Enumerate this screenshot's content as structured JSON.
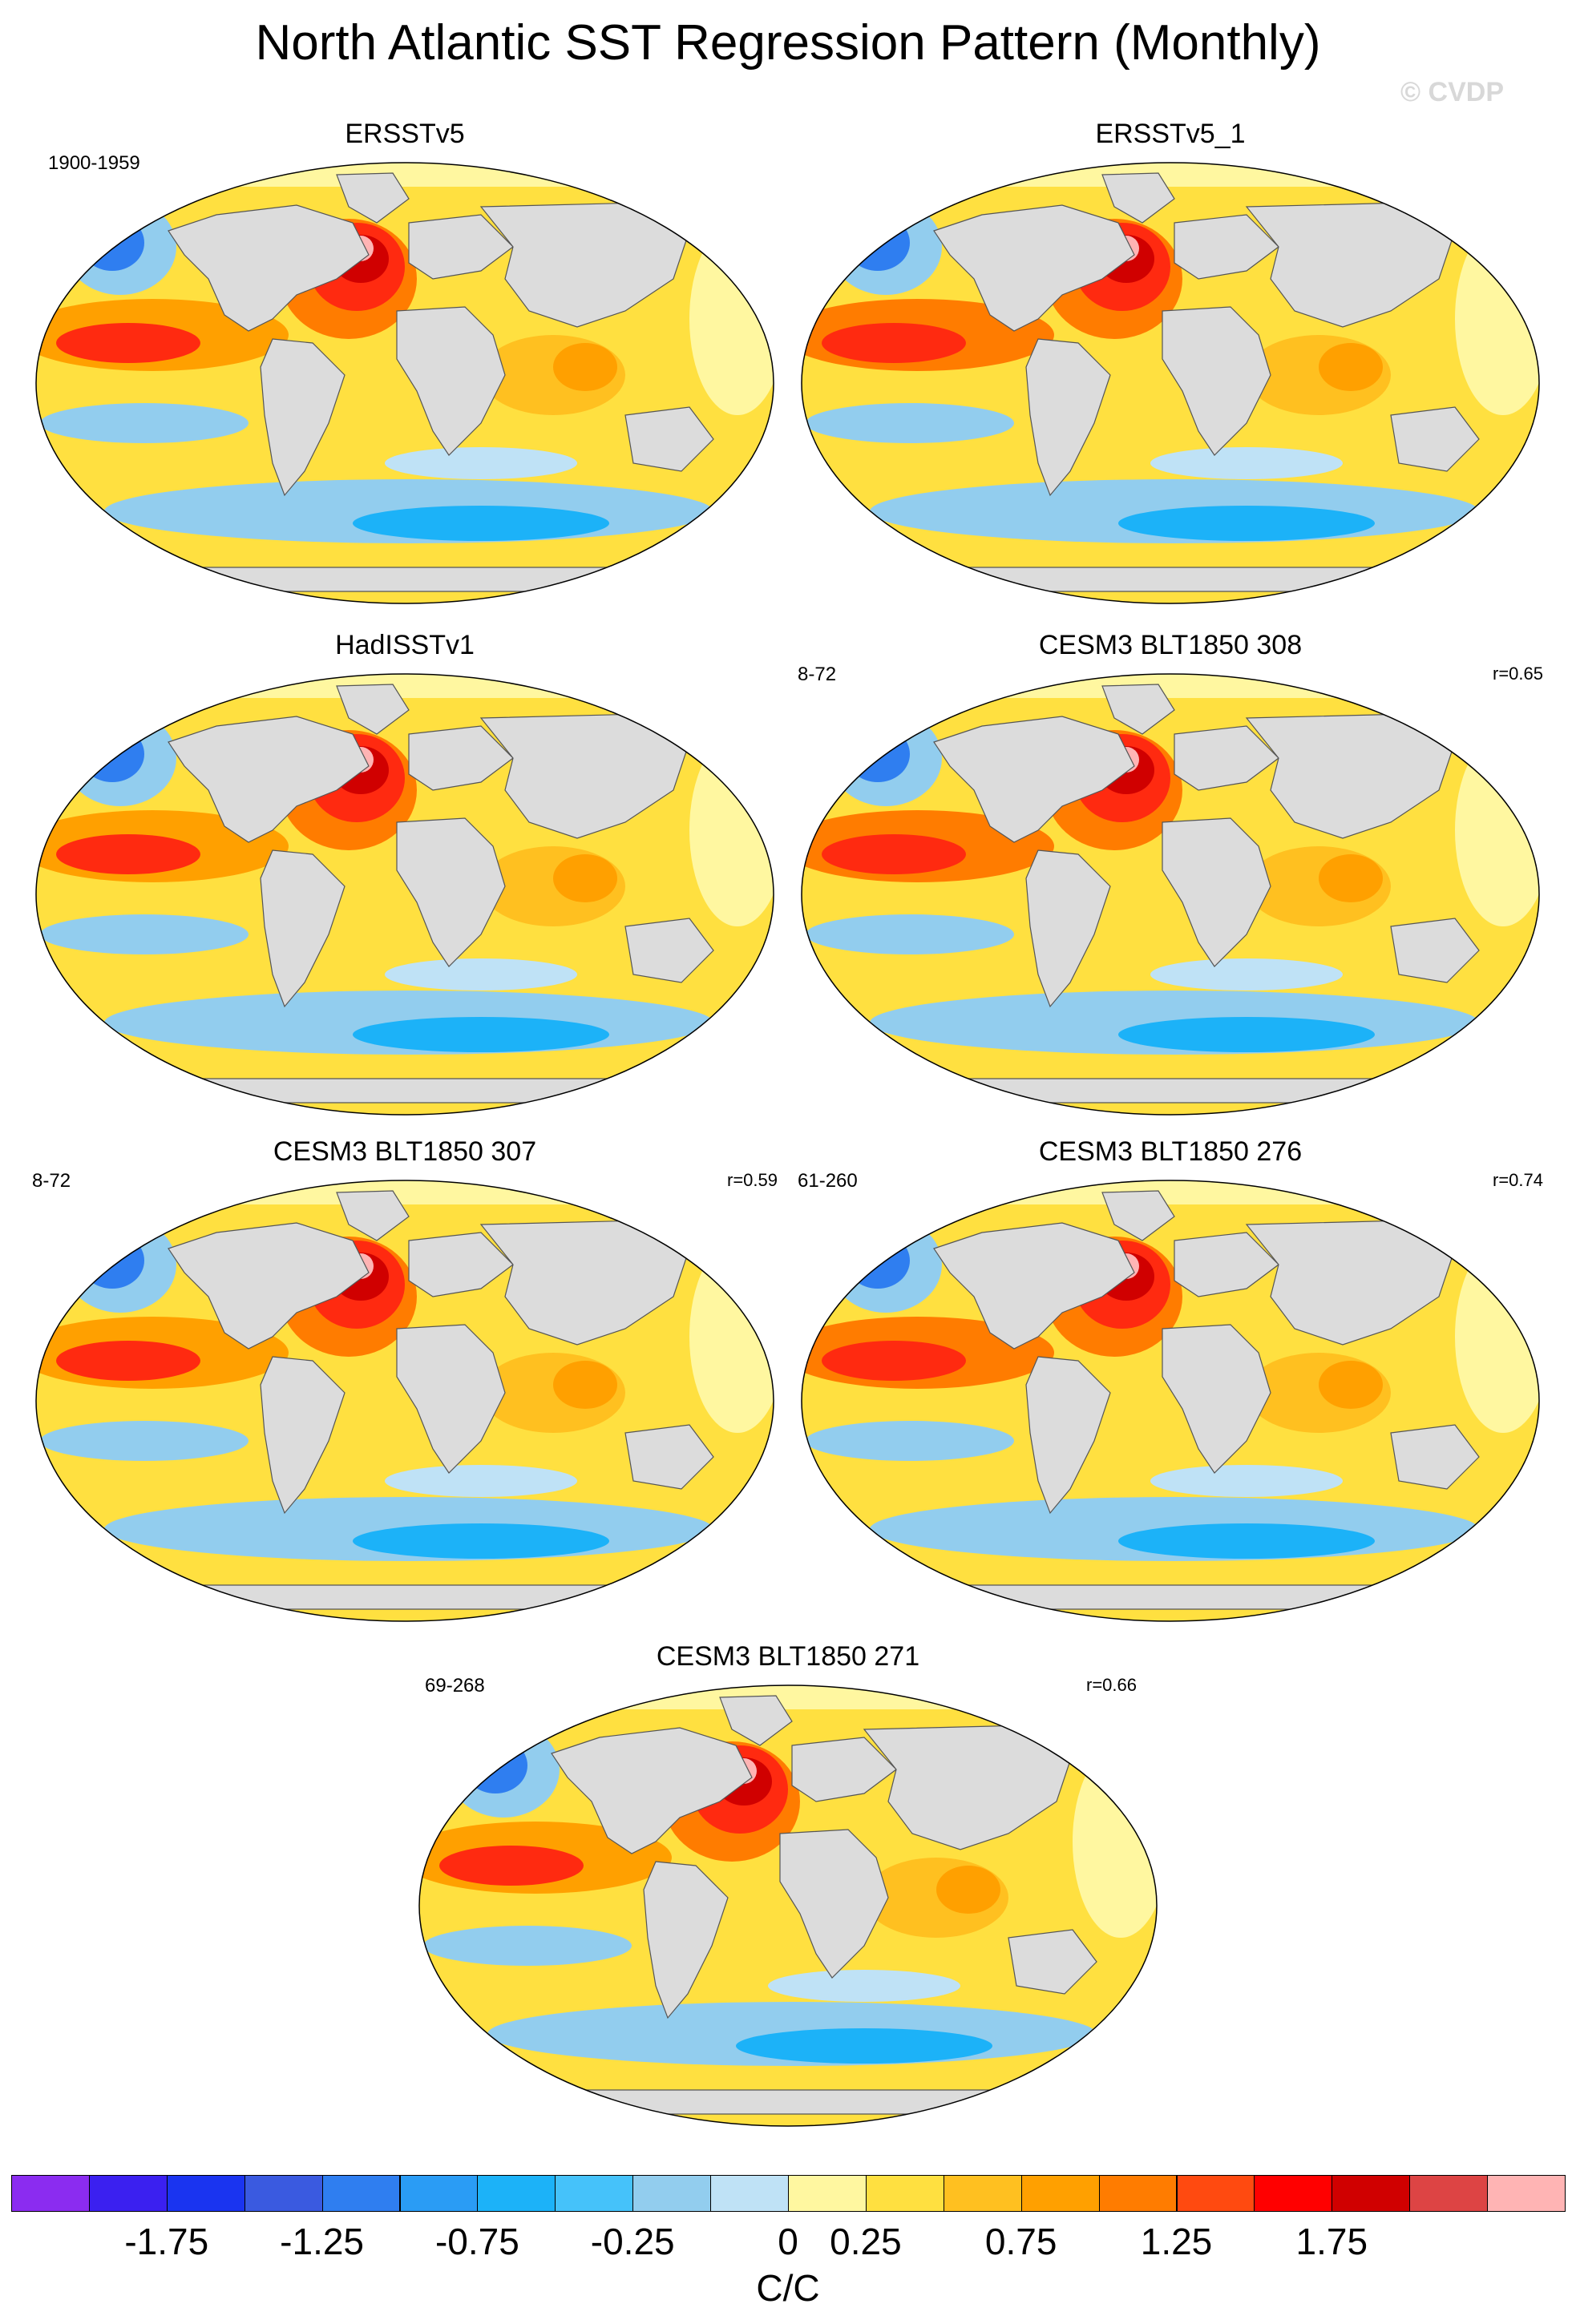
{
  "title": "North Atlantic SST Regression Pattern (Monthly)",
  "watermark": "© CVDP",
  "panels": [
    {
      "title": "ERSSTv5",
      "years": "1900-1959",
      "corr": ""
    },
    {
      "title": "ERSSTv5_1",
      "years": "",
      "corr": ""
    },
    {
      "title": "HadISSTv1",
      "years": "",
      "corr": ""
    },
    {
      "title": "CESM3 BLT1850 308",
      "years": "8-72",
      "corr": "r=0.65"
    },
    {
      "title": "CESM3 BLT1850 307",
      "years": "8-72",
      "corr": "r=0.59"
    },
    {
      "title": "CESM3 BLT1850 276",
      "years": "61-260",
      "corr": "r=0.74"
    },
    {
      "title": "CESM3 BLT1850 271",
      "years": "69-268",
      "corr": "r=0.66"
    }
  ],
  "colorbar": {
    "colors": [
      "#8b2cf0",
      "#3b20f0",
      "#1a34f0",
      "#3a5ae0",
      "#2f7ef0",
      "#2a9cf5",
      "#1cb2f8",
      "#45c2fa",
      "#92cdee",
      "#bfe2f6",
      "#fff7a0",
      "#ffe040",
      "#ffc020",
      "#ffa000",
      "#ff7c00",
      "#ff4a10",
      "#ff0000",
      "#d00000",
      "#dd4444",
      "#ffb4b4"
    ],
    "labels": [
      "-1.75",
      "-1.25",
      "-0.75",
      "-0.25",
      "0",
      "0.25",
      "0.75",
      "1.25",
      "1.75"
    ],
    "units": "C/C"
  }
}
